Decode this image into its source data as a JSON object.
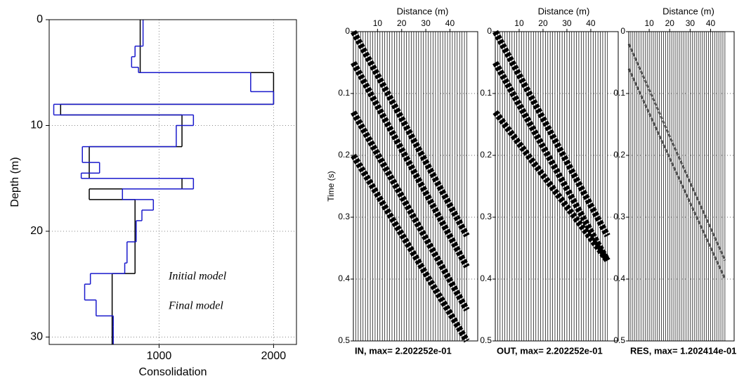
{
  "chart_data": [
    {
      "type": "step-profile",
      "x_label": "Consolidation",
      "y_label": "Depth (m)",
      "xlim": [
        40,
        2200
      ],
      "ylim": [
        0,
        30.7
      ],
      "xticks": [
        1000,
        2000
      ],
      "yticks": [
        0,
        10,
        20,
        30
      ],
      "grid": true,
      "series": [
        {
          "name": "Initial model",
          "color": "#000000",
          "depth": [
            0,
            5,
            8,
            9,
            12,
            15,
            16,
            17,
            24,
            30.7
          ],
          "values": [
            835,
            2000,
            140,
            1200,
            390,
            1200,
            390,
            790,
            590
          ]
        },
        {
          "name": "Final model",
          "color": "#1a1acc",
          "depth": [
            0,
            2.5,
            3.5,
            4.5,
            5,
            6.8,
            8,
            9,
            10,
            12,
            13.5,
            14.5,
            15,
            16,
            17,
            18,
            19,
            21,
            23,
            24,
            25,
            26.5,
            28,
            29,
            30.7
          ],
          "values": [
            860,
            790,
            760,
            820,
            1800,
            2000,
            80,
            1300,
            1150,
            330,
            480,
            320,
            1300,
            680,
            950,
            850,
            800,
            720,
            700,
            400,
            350,
            450,
            600,
            600
          ]
        }
      ]
    },
    {
      "type": "seismic",
      "title": "IN, max= 2.202252e-01",
      "x_label": "Distance (m)",
      "y_label": "Time (s)",
      "xlim": [
        0,
        51.5
      ],
      "ylim": [
        0,
        0.5
      ],
      "xticks": [
        10,
        20,
        30,
        40
      ],
      "yticks": [
        0,
        0.1,
        0.2,
        0.3,
        0.4,
        0.5
      ],
      "grid": true,
      "traces": [
        1,
        2,
        3,
        4,
        5,
        6,
        7,
        8,
        9,
        10,
        11,
        12,
        13,
        14,
        15,
        16,
        17,
        18,
        19,
        20,
        21,
        22,
        23,
        24,
        25,
        26,
        27,
        28,
        29,
        30,
        31,
        32,
        33,
        34,
        35,
        36,
        37,
        38,
        39,
        40,
        41,
        42,
        43,
        44,
        45,
        46,
        47
      ],
      "series": [
        {
          "color": "#000000",
          "x": [
            0,
            47
          ],
          "values": [
            0,
            0.33
          ]
        },
        {
          "color": "#000000",
          "x": [
            0,
            47
          ],
          "values": [
            0.05,
            0.38
          ]
        },
        {
          "color": "#000000",
          "x": [
            0,
            47
          ],
          "values": [
            0.13,
            0.45
          ]
        },
        {
          "color": "#000000",
          "x": [
            0,
            47
          ],
          "values": [
            0.2,
            0.5
          ]
        }
      ]
    },
    {
      "type": "seismic",
      "title": "OUT, max= 2.202252e-01",
      "x_label": "Distance (m)",
      "xlim": [
        0,
        51.5
      ],
      "ylim": [
        0,
        0.5
      ],
      "xticks": [
        10,
        20,
        30,
        40
      ],
      "yticks": [
        0,
        0.1,
        0.2,
        0.3,
        0.4,
        0.5
      ],
      "grid": true,
      "traces": [
        1,
        2,
        3,
        4,
        5,
        6,
        7,
        8,
        9,
        10,
        11,
        12,
        13,
        14,
        15,
        16,
        17,
        18,
        19,
        20,
        21,
        22,
        23,
        24,
        25,
        26,
        27,
        28,
        29,
        30,
        31,
        32,
        33,
        34,
        35,
        36,
        37,
        38,
        39,
        40,
        41,
        42,
        43,
        44,
        45,
        46,
        47
      ],
      "series": [
        {
          "color": "#000000",
          "x": [
            0,
            47
          ],
          "values": [
            0,
            0.33
          ]
        },
        {
          "color": "#000000",
          "x": [
            0,
            47
          ],
          "values": [
            0.05,
            0.37
          ]
        },
        {
          "color": "#000000",
          "x": [
            0,
            47
          ],
          "values": [
            0.13,
            0.37
          ]
        }
      ]
    },
    {
      "type": "seismic",
      "title": "RES, max= 1.202414e-01",
      "x_label": "Distance (m)",
      "xlim": [
        0,
        51.5
      ],
      "ylim": [
        0,
        0.5
      ],
      "xticks": [
        10,
        20,
        30,
        40
      ],
      "yticks": [
        0,
        0.1,
        0.2,
        0.3,
        0.4,
        0.5
      ],
      "grid": true,
      "traces": [
        1,
        2,
        3,
        4,
        5,
        6,
        7,
        8,
        9,
        10,
        11,
        12,
        13,
        14,
        15,
        16,
        17,
        18,
        19,
        20,
        21,
        22,
        23,
        24,
        25,
        26,
        27,
        28,
        29,
        30,
        31,
        32,
        33,
        34,
        35,
        36,
        37,
        38,
        39,
        40,
        41,
        42,
        43,
        44,
        45,
        46,
        47
      ],
      "series": [
        {
          "color": "#555555",
          "x": [
            0,
            47
          ],
          "values": [
            0.02,
            0.37
          ]
        },
        {
          "color": "#555555",
          "x": [
            0,
            47
          ],
          "values": [
            0.06,
            0.4
          ]
        }
      ]
    }
  ]
}
